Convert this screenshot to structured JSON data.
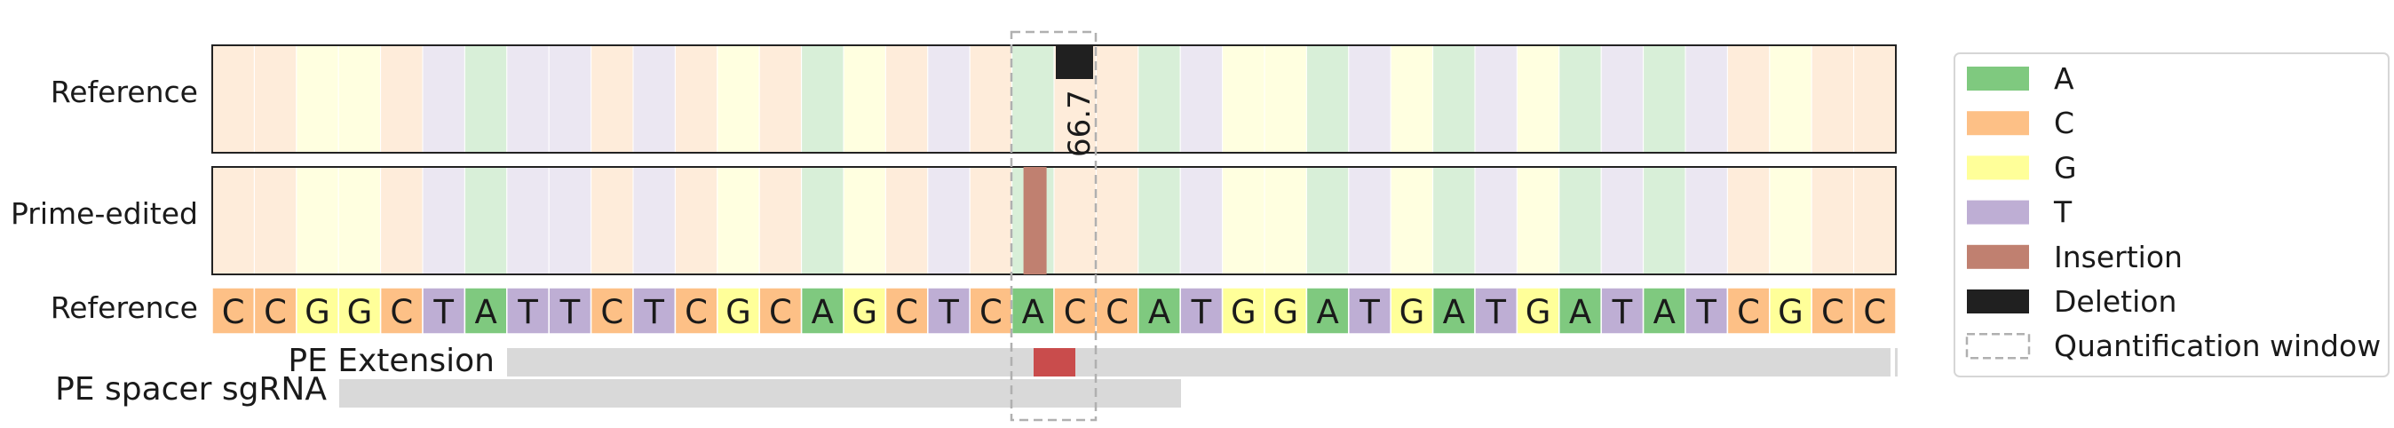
{
  "row_labels": {
    "reference_track": "Reference",
    "prime_edited_track": "Prime-edited",
    "reference_sequence": "Reference",
    "pe_extension": "PE Extension",
    "pe_spacer": "PE spacer sgRNA"
  },
  "reference_sequence": "CCGGCTATTCTCGCAGCTCACCATGGATGATGATATCGCC",
  "deletion_value_label": "66.7",
  "legend": [
    {
      "label": "A",
      "color": "#7fc97f",
      "kind": "patch"
    },
    {
      "label": "C",
      "color": "#fdc086",
      "kind": "patch"
    },
    {
      "label": "G",
      "color": "#ffff99",
      "kind": "patch"
    },
    {
      "label": "T",
      "color": "#beaed4",
      "kind": "patch"
    },
    {
      "label": "Insertion",
      "color": "#c08070",
      "kind": "patch"
    },
    {
      "label": "Deletion",
      "color": "#202020",
      "kind": "patch"
    },
    {
      "label": "Quantification window",
      "color": "#b0b0b0",
      "kind": "dashed"
    }
  ],
  "colors": {
    "A": "#7fc97f",
    "C": "#fdc086",
    "G": "#ffff99",
    "T": "#beaed4",
    "insertion": "#c08070",
    "deletion": "#202020",
    "extension_highlight": "#c94c4c",
    "annotation_bar": "#d9d9d9",
    "window": "#b0b0b0"
  }
}
